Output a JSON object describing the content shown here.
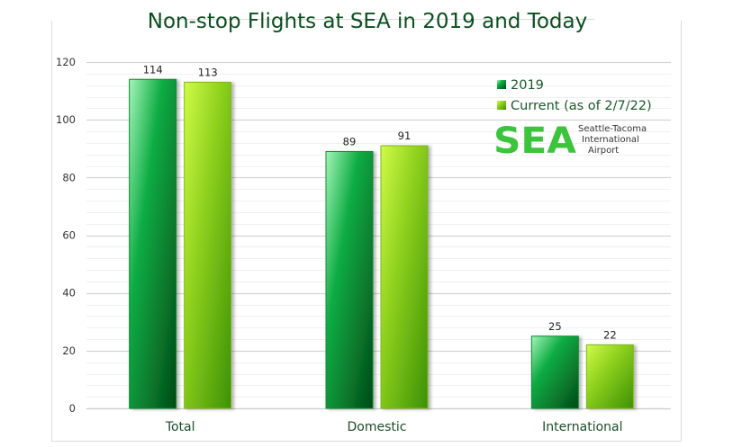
{
  "chart_data": {
    "type": "bar",
    "title": "Non-stop Flights at SEA in 2019 and Today",
    "xlabel": "",
    "ylabel": "",
    "categories": [
      "Total",
      "Domestic",
      "International"
    ],
    "series": [
      {
        "name": "2019",
        "values": [
          114,
          89,
          25
        ],
        "color": "#0e9e3a"
      },
      {
        "name": "Current (as of 2/7/22)",
        "values": [
          113,
          91,
          22
        ],
        "color": "#8fd11e"
      }
    ],
    "ylim": [
      0,
      120
    ],
    "yticks": [
      0,
      20,
      40,
      60,
      80,
      100,
      120
    ],
    "grid": true,
    "legend_position": "top-right",
    "data_labels": true
  },
  "logo": {
    "mark": "SEA",
    "line1": "Seattle-Tacoma",
    "line2": "International",
    "line3": "Airport"
  }
}
